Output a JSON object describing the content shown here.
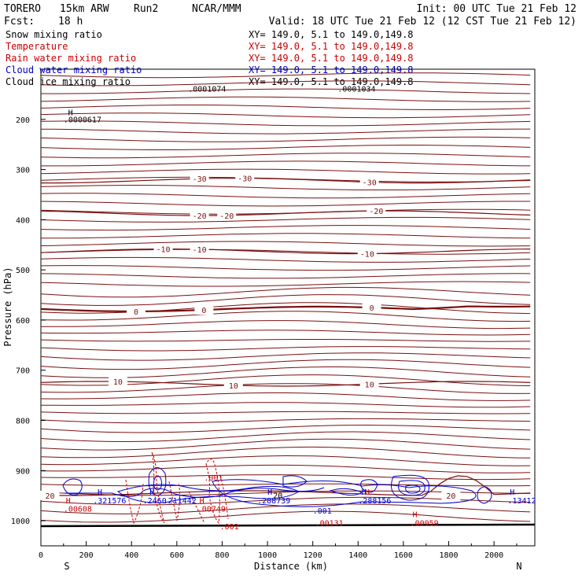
{
  "header": {
    "model": "TORERO",
    "resolution": "15km ARW",
    "run": "Run2",
    "source": "NCAR/MMM",
    "init": "Init: 00 UTC Tue 21 Feb 12",
    "fcst_label": "Fcst:",
    "fcst_value": "18 h",
    "valid": "Valid: 18 UTC Tue 21 Feb 12 (12 CST Tue 21 Feb 12)"
  },
  "fields": [
    {
      "name": "Snow mixing ratio",
      "xy": "XY= 149.0,  5.1 to 149.0,149.8",
      "color": "#000000"
    },
    {
      "name": "Temperature",
      "xy": "XY= 149.0,  5.1 to 149.0,149.8",
      "color": "#cc0000"
    },
    {
      "name": "Rain water mixing ratio",
      "xy": "XY= 149.0,  5.1 to 149.0,149.8",
      "color": "#cc0000"
    },
    {
      "name": "Cloud water mixing ratio",
      "xy": "XY= 149.0,  5.1 to 149.0,149.8",
      "color": "#0000cc"
    },
    {
      "name": "Cloud ice mixing ratio",
      "xy": "XY= 149.0,  5.1 to 149.0,149.8",
      "color": "#000000"
    }
  ],
  "chart_data": {
    "type": "cross-section contour",
    "xlabel": "Distance (km)",
    "ylabel": "Pressure (hPa)",
    "xlim": [
      0,
      2180
    ],
    "ylim": [
      1050,
      100
    ],
    "x_ticks": [
      0,
      200,
      400,
      600,
      800,
      1000,
      1200,
      1400,
      1600,
      1800,
      2000
    ],
    "y_ticks": [
      200,
      300,
      400,
      500,
      600,
      700,
      800,
      900,
      1000
    ],
    "end_labels": {
      "left": "S",
      "right": "N"
    },
    "temperature_contours": [
      {
        "level": -30,
        "pressure": 322,
        "label_x": [
          700,
          900,
          1450
        ]
      },
      {
        "level": -20,
        "pressure": 387,
        "label_x": [
          700,
          820,
          1480
        ]
      },
      {
        "level": -10,
        "pressure": 463,
        "label_x": [
          540,
          700,
          1440
        ]
      },
      {
        "level": 0,
        "pressure": 578,
        "label_x": [
          420,
          720,
          1460
        ]
      },
      {
        "level": 10,
        "pressure": 727,
        "label_x": [
          340,
          850,
          1450
        ]
      },
      {
        "level": 20,
        "pressure": 945,
        "label_x": [
          40,
          1810
        ]
      }
    ],
    "annotations": [
      {
        "text": ".0001074",
        "x": 650,
        "p": 145,
        "color": "#000000"
      },
      {
        "text": ".0001034",
        "x": 1310,
        "p": 145,
        "color": "#000000"
      },
      {
        "text": "H",
        "x": 120,
        "p": 192,
        "color": "#000000"
      },
      {
        "text": ".0000617",
        "x": 100,
        "p": 206,
        "color": "#000000"
      },
      {
        "text": "H",
        "x": 250,
        "p": 948,
        "color": "#0000cc"
      },
      {
        "text": ".321576",
        "x": 230,
        "p": 965,
        "color": "#0000cc"
      },
      {
        "text": "H",
        "x": 480,
        "p": 948,
        "color": "#0000cc"
      },
      {
        "text": ".2460",
        "x": 450,
        "p": 965,
        "color": "#0000cc"
      },
      {
        "text": ".211442",
        "x": 540,
        "p": 965,
        "color": "#0000cc"
      },
      {
        "text": "H",
        "x": 1000,
        "p": 948,
        "color": "#0000cc"
      },
      {
        "text": ".288739",
        "x": 955,
        "p": 965,
        "color": "#0000cc"
      },
      {
        "text": "H",
        "x": 1415,
        "p": 948,
        "color": "#0000cc"
      },
      {
        "text": ".288156",
        "x": 1400,
        "p": 965,
        "color": "#0000cc"
      },
      {
        "text": "H",
        "x": 2070,
        "p": 948,
        "color": "#0000cc"
      },
      {
        "text": ".13412",
        "x": 2060,
        "p": 965,
        "color": "#0000cc"
      },
      {
        "text": ".001",
        "x": 1200,
        "p": 986,
        "color": "#0000cc"
      },
      {
        "text": "H",
        "x": 110,
        "p": 965,
        "color": "#cc0000"
      },
      {
        "text": ".00608",
        "x": 100,
        "p": 982,
        "color": "#cc0000"
      },
      {
        "text": "H",
        "x": 700,
        "p": 965,
        "color": "#cc0000"
      },
      {
        "text": ".00749",
        "x": 690,
        "p": 982,
        "color": "#cc0000"
      },
      {
        "text": "H",
        "x": 1430,
        "p": 948,
        "color": "#cc0000"
      },
      {
        "text": "H",
        "x": 1640,
        "p": 993,
        "color": "#cc0000"
      },
      {
        "text": ".00059",
        "x": 1630,
        "p": 1010,
        "color": "#cc0000"
      },
      {
        "text": ".00131",
        "x": 1210,
        "p": 1010,
        "color": "#cc0000"
      },
      {
        "text": ".001",
        "x": 720,
        "p": 920,
        "color": "#cc0000"
      },
      {
        "text": ".001",
        "x": 790,
        "p": 1017,
        "color": "#cc0000"
      },
      {
        "text": "20",
        "x": 1025,
        "p": 955,
        "color": "#000000"
      }
    ]
  }
}
